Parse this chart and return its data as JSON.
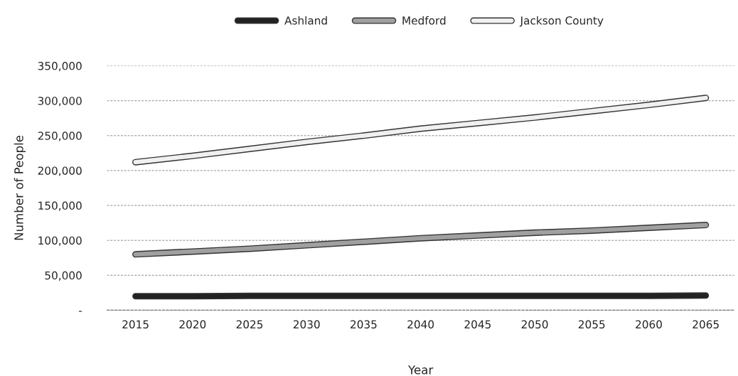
{
  "chart_data": {
    "type": "line",
    "xlabel": "Year",
    "ylabel": "Number of People",
    "categories": [
      "2015",
      "2020",
      "2025",
      "2030",
      "2035",
      "2040",
      "2045",
      "2050",
      "2055",
      "2060",
      "2065"
    ],
    "series": [
      {
        "name": "Ashland",
        "color": "#222222",
        "values": [
          20000,
          20000,
          20500,
          20500,
          20500,
          20500,
          20500,
          20500,
          20500,
          20500,
          21000
        ]
      },
      {
        "name": "Medford",
        "color": "#a0a0a0",
        "values": [
          80000,
          84000,
          88000,
          93000,
          98000,
          103000,
          107000,
          111000,
          114000,
          118000,
          122000
        ]
      },
      {
        "name": "Jackson County",
        "color": "#f0f0f0",
        "values": [
          212000,
          221000,
          231000,
          241000,
          250000,
          260000,
          268000,
          276000,
          285000,
          294000,
          304000
        ]
      }
    ],
    "ylim": [
      0,
      350000
    ],
    "yticks": [
      {
        "value": 0,
        "label": "-"
      },
      {
        "value": 50000,
        "label": "50,000"
      },
      {
        "value": 100000,
        "label": "100,000"
      },
      {
        "value": 150000,
        "label": "150,000"
      },
      {
        "value": 200000,
        "label": "200,000"
      },
      {
        "value": 250000,
        "label": "250,000"
      },
      {
        "value": 300000,
        "label": "300,000"
      },
      {
        "value": 350000,
        "label": "350,000"
      }
    ],
    "grid": "y",
    "legend": "top",
    "marker": "none",
    "line_style": "solid"
  }
}
